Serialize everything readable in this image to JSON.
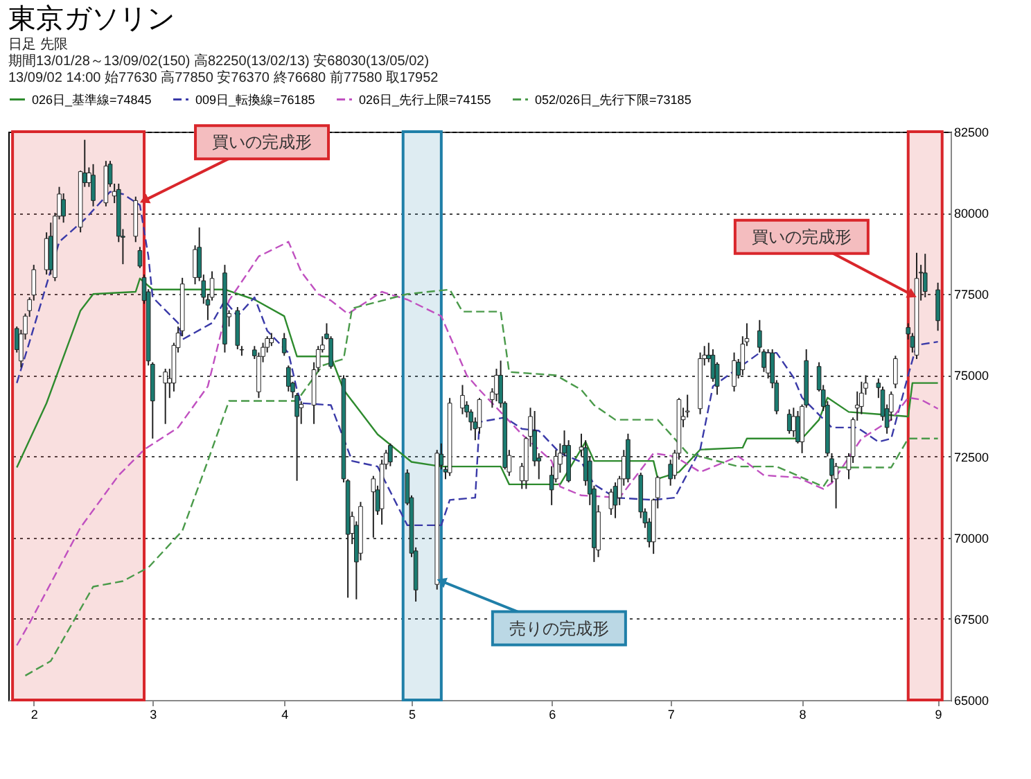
{
  "chart_data": {
    "type": "candlestick",
    "title": "東京ガソリン",
    "subtitle": "日足 先限",
    "annotations": [
      "期間13/01/28～13/09/02(150) 高82250(13/02/13) 安68030(13/05/02)",
      "13/09/02 14:00 始77630 高77850 安76370 終76680 前77580 取17952",
      {
        "text": "買いの完成形",
        "x": "--02-27",
        "y": 80380
      },
      {
        "text": "売りの完成形",
        "x": "--05-08",
        "y": 68660
      },
      {
        "text": "買いの完成形",
        "x": "--08-27",
        "y": 77470
      }
    ],
    "colors": [
      "#1b7b70",
      "#ffffff",
      "#ffffff",
      "#ffffff",
      "#ffffff",
      "#ffffff",
      "#1b7b70",
      "#ffffff",
      "#ffffff",
      "#1b7b70",
      "#ffffff",
      "#1b7b70",
      "#ffffff",
      "#1b7b70",
      "#ffffff",
      "#1b7b70",
      "#ffffff",
      "#1b7b70",
      "#1b7b70",
      "#ffffff",
      "#1b7b70",
      "#1b7b70",
      "#1b7b70",
      "#1b7b70",
      "#ffffff",
      "#ffffff",
      "#ffffff",
      "#ffffff",
      "#ffffff",
      "#ffffff",
      "#1b7b70",
      "#1b7b70",
      "#1b7b70",
      "#ffffff",
      "#1b7b70",
      "#ffffff",
      "#1b7b70",
      "#1b7b70",
      "#1b7b70",
      "#ffffff",
      "#ffffff",
      "#ffffff",
      "#ffffff",
      "#1b7b70",
      "#1b7b70",
      "#1b7b70",
      "#1b7b70",
      "#ffffff",
      "#ffffff",
      "#ffffff",
      "#ffffff",
      "#1b7b70",
      "#1b7b70",
      "#1b7b70",
      "#1b7b70",
      "#ffffff",
      "#1b7b70",
      "#ffffff",
      "#ffffff",
      "#1b7b70",
      "#ffffff",
      "#ffffff",
      "#1b7b70",
      "#1b7b70",
      "#1b7b70",
      "#1b7b70",
      "#ffffff",
      "#1b7b70",
      "#1b7b70",
      "#ffffff",
      "#ffffff",
      "#1b7b70",
      "#1b7b70",
      "#1b7b70",
      "#ffffff",
      "#ffffff",
      "#ffffff",
      "#1b7b70",
      "#1b7b70",
      "#ffffff",
      "#ffffff",
      "#ffffff",
      "#ffffff",
      "#1b7b70",
      "#1b7b70",
      "#1b7b70",
      "#ffffff",
      "#ffffff",
      "#1b7b70",
      "#1b7b70",
      "#ffffff",
      "#1b7b70",
      "#1b7b70",
      "#1b7b70",
      "#ffffff",
      "#ffffff",
      "#1b7b70",
      "#ffffff",
      "#ffffff",
      "#1b7b70",
      "#1b7b70",
      "#1b7b70",
      "#1b7b70",
      "#ffffff",
      "#ffffff",
      "#1b7b70",
      "#ffffff",
      "#ffffff",
      "#ffffff",
      "#ffffff",
      "#ffffff",
      "#ffffff",
      "#1b7b70",
      "#1b7b70",
      "#1b7b70",
      "#ffffff",
      "#1b7b70",
      "#ffffff",
      "#ffffff",
      "#1b7b70",
      "#1b7b70",
      "#ffffff",
      "#1b7b70",
      "#1b7b70",
      "#1b7b70",
      "#ffffff",
      "#1b7b70",
      "#ffffff",
      "#1b7b70",
      "#1b7b70",
      "#1b7b70",
      "#1b7b70",
      "#1b7b70",
      "#ffffff",
      "#ffffff",
      "#ffffff",
      "#ffffff",
      "#ffffff",
      "#ffffff",
      "#1b7b70",
      "#1b7b70",
      "#1b7b70",
      "#ffffff",
      "#ffffff",
      "#1b7b70",
      "#1b7b70",
      "#ffffff",
      "#1b7b70",
      "#1b7b70",
      "#1b7b70"
    ],
    "legend": "top left",
    "grid": "y",
    "xlim": [
      "--01-26",
      "--09-05"
    ],
    "ylim": [
      65000,
      82500
    ],
    "xticks": [
      {
        "value": "--02-01",
        "label": "2"
      },
      {
        "value": "--03-01",
        "label": "3"
      },
      {
        "value": "--04-01",
        "label": "4"
      },
      {
        "value": "--05-01",
        "label": "5"
      },
      {
        "value": "--06-03",
        "label": "6"
      },
      {
        "value": "--07-01",
        "label": "7"
      },
      {
        "value": "--08-01",
        "label": "8"
      },
      {
        "value": "--09-02",
        "label": "9"
      }
    ],
    "yticks": [
      65000,
      67500,
      70000,
      72500,
      75000,
      77500,
      80000,
      82500
    ],
    "bands": [
      {
        "axis": "x",
        "from": "--01-27",
        "to": "--02-27",
        "color": "#d9262b"
      },
      {
        "axis": "x",
        "from": "--04-29",
        "to": "--05-08",
        "color": "#1f7fa8"
      },
      {
        "axis": "x",
        "from": "--08-26",
        "to": "--09-03",
        "color": "#d9262b"
      }
    ],
    "x": [
      "--01-28",
      "--01-29",
      "--01-30",
      "--01-31",
      "--02-01",
      "--02-04",
      "--02-05",
      "--02-06",
      "--02-07",
      "--02-08",
      "--02-12",
      "--02-13",
      "--02-14",
      "--02-15",
      "--02-18",
      "--02-19",
      "--02-20",
      "--02-21",
      "--02-22",
      "--02-25",
      "--02-26",
      "--02-27",
      "--02-28",
      "--03-01",
      "--03-04",
      "--03-05",
      "--03-06",
      "--03-07",
      "--03-08",
      "--03-11",
      "--03-12",
      "--03-13",
      "--03-14",
      "--03-15",
      "--03-18",
      "--03-19",
      "--03-21",
      "--03-22",
      "--03-25",
      "--03-26",
      "--03-27",
      "--03-28",
      "--03-29",
      "--04-01",
      "--04-02",
      "--04-03",
      "--04-04",
      "--04-05",
      "--04-08",
      "--04-09",
      "--04-10",
      "--04-11",
      "--04-12",
      "--04-15",
      "--04-16",
      "--04-17",
      "--04-18",
      "--04-19",
      "--04-22",
      "--04-23",
      "--04-24",
      "--04-25",
      "--04-26",
      "--04-30",
      "--05-01",
      "--05-02",
      "--05-07",
      "--05-08",
      "--05-09",
      "--05-10",
      "--05-13",
      "--05-14",
      "--05-15",
      "--05-16",
      "--05-17",
      "--05-20",
      "--05-21",
      "--05-22",
      "--05-23",
      "--05-24",
      "--05-27",
      "--05-28",
      "--05-29",
      "--05-30",
      "--05-31",
      "--06-03",
      "--06-04",
      "--06-05",
      "--06-06",
      "--06-07",
      "--06-10",
      "--06-11",
      "--06-12",
      "--06-13",
      "--06-14",
      "--06-17",
      "--06-18",
      "--06-19",
      "--06-20",
      "--06-21",
      "--06-24",
      "--06-25",
      "--06-26",
      "--06-27",
      "--06-28",
      "--07-01",
      "--07-02",
      "--07-03",
      "--07-04",
      "--07-05",
      "--07-08",
      "--07-09",
      "--07-10",
      "--07-11",
      "--07-12",
      "--07-16",
      "--07-17",
      "--07-18",
      "--07-19",
      "--07-22",
      "--07-23",
      "--07-24",
      "--07-25",
      "--07-26",
      "--07-29",
      "--07-30",
      "--07-31",
      "--08-01",
      "--08-02",
      "--08-05",
      "--08-06",
      "--08-07",
      "--08-08",
      "--08-09",
      "--08-12",
      "--08-13",
      "--08-14",
      "--08-15",
      "--08-16",
      "--08-19",
      "--08-20",
      "--08-21",
      "--08-22",
      "--08-23",
      "--08-26",
      "--08-27",
      "--08-28",
      "--08-29",
      "--08-30",
      "--09-02"
    ],
    "ohlc": [
      [
        76440,
        76500,
        75700,
        75790
      ],
      [
        75440,
        76400,
        75240,
        76270
      ],
      [
        76270,
        76900,
        76100,
        76820
      ],
      [
        76990,
        77400,
        76800,
        77330
      ],
      [
        77470,
        78400,
        77300,
        78250
      ],
      [
        78250,
        79400,
        78100,
        79210
      ],
      [
        79280,
        79700,
        78100,
        78250
      ],
      [
        78010,
        80000,
        77900,
        79900
      ],
      [
        79900,
        80800,
        79800,
        80580
      ],
      [
        80410,
        80600,
        79700,
        79900
      ],
      [
        79560,
        81300,
        79400,
        81270
      ],
      [
        81230,
        82250,
        80800,
        80930
      ],
      [
        80930,
        81400,
        80800,
        81230
      ],
      [
        81160,
        81500,
        80200,
        80380
      ],
      [
        80310,
        81600,
        80200,
        81440
      ],
      [
        81500,
        81600,
        80800,
        80890
      ],
      [
        80520,
        80900,
        80300,
        80660
      ],
      [
        80720,
        80900,
        79100,
        79280
      ],
      [
        79280,
        79500,
        78420,
        79250
      ],
      [
        79280,
        80500,
        79100,
        80380
      ],
      [
        78840,
        78950,
        78300,
        78360
      ],
      [
        78010,
        78100,
        77200,
        77300
      ],
      [
        77570,
        77650,
        75300,
        75440
      ],
      [
        75340,
        75400,
        73050,
        74210
      ],
      [
        74760,
        75200,
        73500,
        75100
      ],
      [
        74760,
        75200,
        74300,
        74900
      ],
      [
        74760,
        76000,
        74500,
        75920
      ],
      [
        75850,
        76500,
        75700,
        76300
      ],
      [
        76370,
        78000,
        76200,
        77810
      ],
      [
        78010,
        79000,
        77800,
        78870
      ],
      [
        78940,
        79550,
        77900,
        78010
      ],
      [
        77910,
        78100,
        77200,
        77400
      ],
      [
        77330,
        77500,
        76700,
        77160
      ],
      [
        77400,
        78200,
        77300,
        77980
      ],
      [
        78150,
        78400,
        75700,
        75960
      ],
      [
        76800,
        77000,
        76500,
        76900
      ],
      [
        76990,
        77100,
        75800,
        75920
      ],
      [
        75790,
        75900,
        75600,
        75780
      ],
      [
        75780,
        75900,
        75500,
        75600
      ],
      [
        74490,
        75700,
        74300,
        75580
      ],
      [
        75580,
        76000,
        75400,
        75860
      ],
      [
        75860,
        76200,
        75700,
        76130
      ],
      [
        76000,
        76300,
        75900,
        76130
      ],
      [
        76130,
        76300,
        75600,
        75690
      ],
      [
        75240,
        75300,
        74500,
        74660
      ],
      [
        74760,
        74800,
        74300,
        74490
      ],
      [
        74380,
        74450,
        71750,
        73730
      ],
      [
        74000,
        74200,
        73500,
        74100
      ],
      [
        74080,
        75400,
        73500,
        75170
      ],
      [
        75240,
        75900,
        75100,
        75790
      ],
      [
        75790,
        76200,
        75700,
        75930
      ],
      [
        76270,
        76600,
        76100,
        76130
      ],
      [
        76130,
        76200,
        75200,
        75270
      ],
      [
        74900,
        75000,
        71700,
        71810
      ],
      [
        71750,
        71800,
        68150,
        70100
      ],
      [
        70130,
        70800,
        69800,
        70650
      ],
      [
        70380,
        70500,
        68100,
        69250
      ],
      [
        69520,
        71100,
        69300,
        70960
      ],
      [
        71410,
        71900,
        70000,
        71810
      ],
      [
        71470,
        71600,
        70700,
        70820
      ],
      [
        70890,
        72400,
        70400,
        72260
      ],
      [
        72260,
        72700,
        72100,
        72600
      ],
      [
        72840,
        72900,
        72200,
        72330
      ],
      [
        71990,
        72100,
        71000,
        71060
      ],
      [
        71230,
        71300,
        69400,
        69520
      ],
      [
        69590,
        69700,
        68030,
        68390
      ],
      [
        68560,
        72700,
        68400,
        72600
      ],
      [
        72570,
        72900,
        72100,
        72230
      ],
      [
        72100,
        72200,
        71800,
        72020
      ],
      [
        72000,
        74300,
        71900,
        74140
      ],
      [
        73990,
        74700,
        73800,
        74380
      ],
      [
        74080,
        74200,
        73700,
        73870
      ],
      [
        73870,
        73950,
        73300,
        73560
      ],
      [
        73560,
        73700,
        73000,
        73350
      ],
      [
        73390,
        74300,
        73200,
        74250
      ],
      [
        74250,
        74600,
        74000,
        74480
      ],
      [
        74420,
        75200,
        74200,
        75000
      ],
      [
        75000,
        75450,
        74000,
        74140
      ],
      [
        74140,
        74200,
        72100,
        72160
      ],
      [
        72020,
        72700,
        71900,
        72530
      ],
      [
        71750,
        72300,
        71500,
        72190
      ],
      [
        71750,
        73100,
        71500,
        73050
      ],
      [
        73120,
        74000,
        72800,
        73730
      ],
      [
        73290,
        73900,
        72200,
        72360
      ],
      [
        72450,
        72600,
        71800,
        72360
      ],
      [
        71920,
        72200,
        71000,
        71470
      ],
      [
        71810,
        72700,
        71700,
        72500
      ],
      [
        72260,
        72900,
        72000,
        72600
      ],
      [
        72840,
        73300,
        72500,
        72600
      ],
      [
        72840,
        73000,
        71700,
        71750
      ],
      [
        72700,
        73200,
        72500,
        72790
      ],
      [
        72770,
        73000,
        71600,
        71750
      ],
      [
        72360,
        72500,
        71000,
        71340
      ],
      [
        71500,
        71600,
        69250,
        69690
      ],
      [
        69620,
        71000,
        69400,
        70790
      ],
      [
        70890,
        71500,
        70700,
        71400
      ],
      [
        71580,
        71700,
        70600,
        71000
      ],
      [
        71230,
        71900,
        71000,
        71810
      ],
      [
        71810,
        72700,
        71600,
        72500
      ],
      [
        73020,
        73200,
        71700,
        71810
      ],
      [
        71920,
        72000,
        70600,
        70790
      ],
      [
        70790,
        70900,
        70300,
        70450
      ],
      [
        70480,
        70600,
        69700,
        69870
      ],
      [
        69870,
        71200,
        69500,
        71160
      ],
      [
        71230,
        71900,
        70900,
        71850
      ],
      [
        72260,
        72400,
        71600,
        71810
      ],
      [
        71920,
        72700,
        71800,
        72600
      ],
      [
        72600,
        74300,
        72400,
        74250
      ],
      [
        73630,
        74000,
        73400,
        73730
      ],
      [
        73870,
        74400,
        73700,
        73900
      ],
      [
        73970,
        75700,
        73800,
        75510
      ],
      [
        75510,
        75900,
        75300,
        75620
      ],
      [
        75620,
        76000,
        75400,
        75510
      ],
      [
        75620,
        75800,
        74800,
        74900
      ],
      [
        75340,
        75400,
        74400,
        74660
      ],
      [
        74660,
        75700,
        74500,
        75450
      ],
      [
        75400,
        75500,
        74900,
        75000
      ],
      [
        75170,
        76200,
        75000,
        75960
      ],
      [
        76030,
        76600,
        75900,
        76130
      ],
      [
        76370,
        76700,
        75700,
        75860
      ],
      [
        75720,
        75800,
        75100,
        75240
      ],
      [
        75070,
        75800,
        74900,
        75690
      ],
      [
        75690,
        75800,
        74600,
        74760
      ],
      [
        74760,
        74850,
        73800,
        73900
      ],
      [
        73800,
        73950,
        73200,
        73290
      ],
      [
        73290,
        74000,
        73100,
        73730
      ],
      [
        73730,
        73900,
        72900,
        72950
      ],
      [
        72950,
        74100,
        72600,
        74040
      ],
      [
        75450,
        75800,
        74000,
        74080
      ],
      [
        75270,
        75400,
        74500,
        74550
      ],
      [
        74550,
        74700,
        73900,
        74040
      ],
      [
        74080,
        74200,
        72500,
        72600
      ],
      [
        72430,
        72600,
        71700,
        71920
      ],
      [
        71810,
        72300,
        70900,
        72190
      ],
      [
        72090,
        72600,
        71800,
        72500
      ],
      [
        72500,
        73700,
        72300,
        73630
      ],
      [
        73990,
        74500,
        73600,
        74080
      ],
      [
        74040,
        74800,
        73800,
        74450
      ],
      [
        74600,
        75000,
        74400,
        74760
      ],
      [
        74760,
        74900,
        74300,
        74620
      ],
      [
        74550,
        74650,
        73600,
        73730
      ],
      [
        73970,
        74100,
        73200,
        73390
      ],
      [
        73870,
        74500,
        73600,
        74410
      ],
      [
        74730,
        75600,
        74600,
        75510
      ],
      [
        76470,
        76600,
        76100,
        76270
      ],
      [
        76200,
        76300,
        75700,
        75860
      ],
      [
        75620,
        78770,
        75500,
        77980
      ],
      [
        78170,
        78400,
        77300,
        78150
      ],
      [
        78150,
        78740,
        77400,
        77580
      ],
      [
        77630,
        77850,
        76370,
        76680
      ]
    ],
    "series": [
      {
        "type": "line",
        "name": "026日_基準線=74845",
        "color": "#2e8b2e",
        "line_style": "solid",
        "x": [
          "--01-28",
          "--02-04",
          "--02-12",
          "--02-15",
          "--02-25",
          "--02-26",
          "--03-01",
          "--03-18",
          "--03-25",
          "--04-01",
          "--04-04",
          "--04-12",
          "--04-15",
          "--04-23",
          "--05-01",
          "--05-08",
          "--05-22",
          "--05-24",
          "--06-05",
          "--06-11",
          "--06-13",
          "--06-27",
          "--06-28",
          "--07-03",
          "--07-08",
          "--07-18",
          "--07-19",
          "--08-01",
          "--08-05",
          "--08-07",
          "--08-12",
          "--08-26",
          "--08-27",
          "--09-02"
        ],
        "values": [
          72160,
          74140,
          76990,
          77500,
          77570,
          77980,
          77640,
          77640,
          77330,
          76820,
          75580,
          75580,
          74550,
          73180,
          72330,
          72190,
          72190,
          71640,
          71640,
          72950,
          72360,
          72360,
          71810,
          72020,
          72710,
          72770,
          73050,
          73050,
          73630,
          74310,
          73870,
          73730,
          74760,
          74760
        ]
      },
      {
        "type": "line",
        "name": "009日_転換線=76185",
        "color": "#3a3aa8",
        "line_style": "dashed",
        "x": [
          "--01-28",
          "--01-31",
          "--02-07",
          "--02-13",
          "--02-19",
          "--02-22",
          "--02-26",
          "--02-28",
          "--03-01",
          "--03-07",
          "--03-08",
          "--03-15",
          "--03-18",
          "--03-21",
          "--03-25",
          "--03-28",
          "--04-02",
          "--04-04",
          "--04-05",
          "--04-12",
          "--04-17",
          "--04-23",
          "--04-30",
          "--05-08",
          "--05-10",
          "--05-16",
          "--05-17",
          "--05-23",
          "--05-27",
          "--05-31",
          "--06-05",
          "--06-10",
          "--06-13",
          "--06-18",
          "--06-27",
          "--07-02",
          "--07-08",
          "--07-11",
          "--07-22",
          "--07-26",
          "--07-30",
          "--08-01",
          "--08-08",
          "--08-14",
          "--08-19",
          "--08-22",
          "--08-26",
          "--08-28",
          "--09-02"
        ],
        "values": [
          74760,
          76030,
          79110,
          79800,
          80650,
          80580,
          80240,
          78660,
          77400,
          76610,
          76100,
          76610,
          77300,
          76820,
          77400,
          76370,
          75690,
          74550,
          74140,
          74080,
          72360,
          72190,
          70380,
          70380,
          71160,
          71230,
          73560,
          73700,
          73350,
          73290,
          72600,
          72330,
          71640,
          71230,
          71160,
          71230,
          72710,
          74660,
          75690,
          75690,
          74930,
          74310,
          73390,
          73390,
          72950,
          73050,
          75000,
          75930,
          76030
        ]
      },
      {
        "type": "line",
        "name": "026日_先行上限=74155",
        "color": "#c050c0",
        "line_style": "dashed",
        "x": [
          "--01-28",
          "--01-31",
          "--02-12",
          "--02-21",
          "--02-27",
          "--03-07",
          "--03-14",
          "--03-19",
          "--03-26",
          "--04-02",
          "--04-05",
          "--04-09",
          "--04-12",
          "--04-16",
          "--04-24",
          "--04-30",
          "--05-08",
          "--05-14",
          "--05-17",
          "--05-27",
          "--06-03",
          "--06-05",
          "--06-10",
          "--06-19",
          "--06-27",
          "--07-02",
          "--07-08",
          "--07-17",
          "--07-23",
          "--07-31",
          "--08-06",
          "--08-08",
          "--08-15",
          "--08-22",
          "--08-26",
          "--08-29",
          "--09-02"
        ],
        "values": [
          66680,
          67370,
          70310,
          71920,
          72710,
          73390,
          74660,
          77300,
          78660,
          79110,
          78190,
          77500,
          77300,
          76890,
          77570,
          77330,
          76820,
          75000,
          74550,
          73180,
          72360,
          71570,
          71300,
          71230,
          72600,
          72500,
          72020,
          72500,
          71920,
          71850,
          71500,
          71680,
          73050,
          73630,
          74310,
          74250,
          73970
        ]
      },
      {
        "type": "line",
        "name": "052/026日_先行下限=73185",
        "color": "#4a9a4a",
        "line_style": "dashed",
        "x": [
          "--01-30",
          "--02-05",
          "--02-15",
          "--02-22",
          "--02-28",
          "--03-08",
          "--03-14",
          "--03-19",
          "--03-26",
          "--04-04",
          "--04-10",
          "--04-15",
          "--04-17",
          "--04-30",
          "--05-10",
          "--05-13",
          "--05-22",
          "--05-24",
          "--06-04",
          "--06-10",
          "--06-13",
          "--06-18",
          "--06-28",
          "--07-05",
          "--07-17",
          "--07-26",
          "--08-06",
          "--08-09",
          "--08-22",
          "--08-26",
          "--09-02"
        ],
        "values": [
          65750,
          66200,
          68490,
          68660,
          69080,
          70210,
          72360,
          74210,
          74210,
          74210,
          75300,
          75500,
          77060,
          77500,
          77640,
          76960,
          76960,
          75100,
          75000,
          74550,
          74080,
          73630,
          73630,
          72600,
          72190,
          72190,
          71570,
          72160,
          72160,
          73050,
          73050
        ]
      }
    ]
  }
}
